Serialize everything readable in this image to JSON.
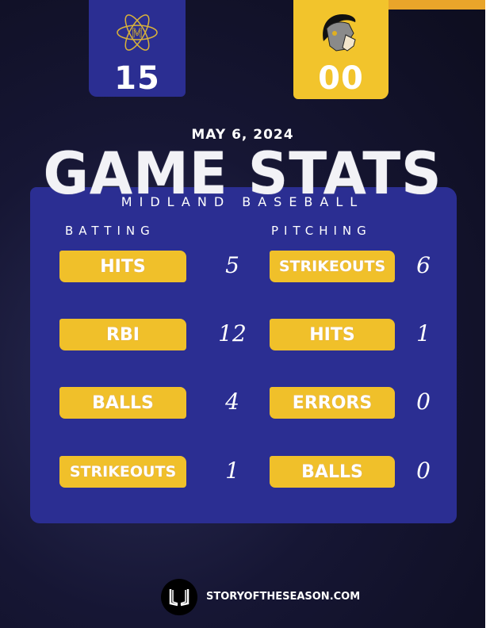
{
  "teams": [
    {
      "score": "15",
      "logo": "atom-logo",
      "color": "#2b2e92"
    },
    {
      "score": "00",
      "logo": "trojan-helmet-logo",
      "color": "#f2c42c"
    }
  ],
  "date": "MAY 6, 2024",
  "title": "GAME STATS",
  "subtitle": "MIDLAND BASEBALL",
  "batting": {
    "heading": "BATTING",
    "rows": [
      {
        "label": "HITS",
        "value": "5"
      },
      {
        "label": "RBI",
        "value": "12"
      },
      {
        "label": "BALLS",
        "value": "4"
      },
      {
        "label": "STRIKEOUTS",
        "value": "1"
      }
    ]
  },
  "pitching": {
    "heading": "PITCHING",
    "rows": [
      {
        "label": "STRIKEOUTS",
        "value": "6"
      },
      {
        "label": "HITS",
        "value": "1"
      },
      {
        "label": "ERRORS",
        "value": "0"
      },
      {
        "label": "BALLS",
        "value": "0"
      }
    ]
  },
  "footer": {
    "text": "STORYOFTHESEASON.COM",
    "icon": "open-book-logo"
  }
}
